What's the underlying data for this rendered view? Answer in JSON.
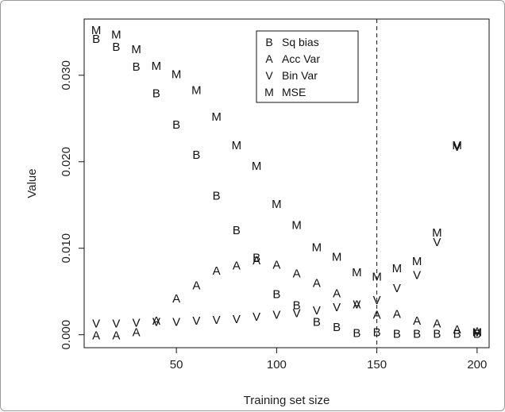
{
  "chart_data": {
    "type": "scatter",
    "xlabel": "Training set size",
    "ylabel": "Value",
    "xlim": [
      4,
      206
    ],
    "ylim": [
      -0.0015,
      0.0365
    ],
    "x_ticks": [
      {
        "value": 50,
        "label": "50"
      },
      {
        "value": 100,
        "label": "100"
      },
      {
        "value": 150,
        "label": "150"
      },
      {
        "value": 200,
        "label": "200"
      }
    ],
    "y_ticks": [
      {
        "value": 0.0,
        "label": "0.000"
      },
      {
        "value": 0.01,
        "label": "0.010"
      },
      {
        "value": 0.02,
        "label": "0.020"
      },
      {
        "value": 0.03,
        "label": "0.030"
      }
    ],
    "vline": {
      "x": 150,
      "style": "dashed"
    },
    "legend": {
      "position": "top-center",
      "entries": [
        {
          "symbol": "B",
          "label": "Sq bias"
        },
        {
          "symbol": "A",
          "label": "Acc Var"
        },
        {
          "symbol": "V",
          "label": "Bin Var"
        },
        {
          "symbol": "M",
          "label": "MSE"
        }
      ]
    },
    "x": [
      10,
      20,
      30,
      40,
      50,
      60,
      70,
      80,
      90,
      100,
      110,
      120,
      130,
      140,
      150,
      160,
      170,
      180,
      190,
      200
    ],
    "series": [
      {
        "name": "Sq bias",
        "symbol": "B",
        "values": [
          0.0342,
          0.0333,
          0.031,
          0.0279,
          0.0243,
          0.0208,
          0.0161,
          0.0121,
          0.0089,
          0.0047,
          0.0034,
          0.0015,
          0.0009,
          0.0002,
          0.0003,
          0.0001,
          0.0001,
          0.0001,
          0.0001,
          0.0001
        ]
      },
      {
        "name": "Acc Var",
        "symbol": "A",
        "values": [
          -0.0001,
          -0.0001,
          0.0003,
          0.0016,
          0.0042,
          0.0057,
          0.0074,
          0.008,
          0.0086,
          0.0081,
          0.0071,
          0.006,
          0.0048,
          0.0035,
          0.0023,
          0.0024,
          0.0016,
          0.0013,
          0.0006,
          0.0004
        ]
      },
      {
        "name": "Bin Var",
        "symbol": "V",
        "values": [
          0.0013,
          0.0013,
          0.0014,
          0.0015,
          0.0015,
          0.0016,
          0.0017,
          0.0018,
          0.0021,
          0.0023,
          0.0025,
          0.0028,
          0.0032,
          0.0035,
          0.004,
          0.0054,
          0.0069,
          0.0107,
          0.0217,
          0.0003
        ]
      },
      {
        "name": "MSE",
        "symbol": "M",
        "values": [
          0.0352,
          0.0347,
          0.033,
          0.0311,
          0.0301,
          0.0283,
          0.0252,
          0.0219,
          0.0195,
          0.0151,
          0.0127,
          0.0101,
          0.009,
          0.0072,
          0.0067,
          0.0077,
          0.0085,
          0.0118,
          0.0219,
          0.0003
        ]
      }
    ]
  }
}
